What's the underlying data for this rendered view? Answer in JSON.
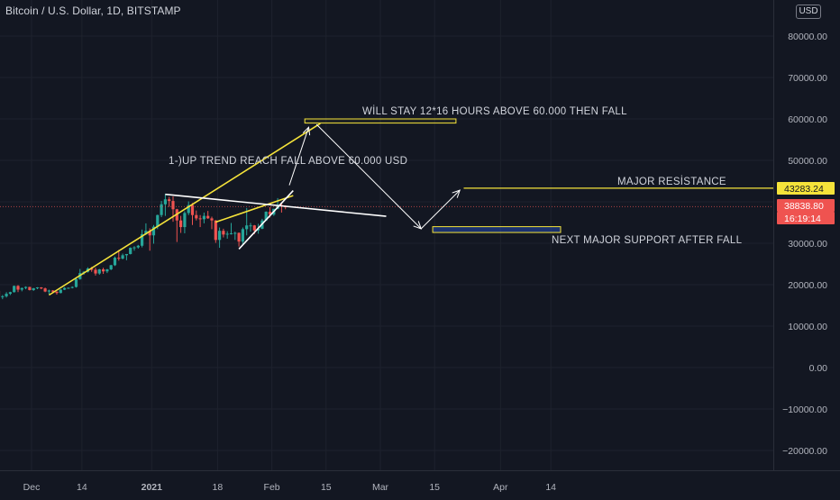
{
  "header": {
    "symbol_title": "Bitcoin / U.S. Dollar, 1D, BITSTAMP",
    "currency_button": "USD"
  },
  "colors": {
    "background": "#131722",
    "grid": "#1e222d",
    "axis_text": "#b2b5be",
    "candle_up": "#26a69a",
    "candle_down": "#ef5350",
    "trendline_yellow": "#f5e33a",
    "drawing_white": "#ffffff",
    "annotation_text": "#d1d4dc",
    "price_tag_yellow": "#f5e33a",
    "price_tag_red": "#ef5350"
  },
  "price_axis": {
    "ticks": [
      "80000.00",
      "70000.00",
      "60000.00",
      "50000.00",
      "40000.00",
      "30000.00",
      "20000.00",
      "10000.00",
      "0.00",
      "−10000.00",
      "−20000.00"
    ],
    "tags": [
      {
        "text": "43283.24",
        "style": "yellow"
      },
      {
        "text": "38838.80",
        "style": "red"
      },
      {
        "text": "16:19:14",
        "style": "red"
      }
    ]
  },
  "time_axis": {
    "ticks": [
      "Dec",
      "14",
      "2021",
      "18",
      "Feb",
      "15",
      "Mar",
      "15",
      "Apr",
      "14"
    ]
  },
  "annotations": {
    "stay_above": "WİLL STAY 12*16 HOURS ABOVE 60.000 THEN FALL",
    "uptrend": "1-)UP TREND REACH FALL ABOVE 60.000 USD",
    "major_resistance": "MAJOR RESİSTANCE",
    "next_support": "NEXT MAJOR SUPPORT AFTER FALL"
  },
  "chart_data": {
    "type": "candlestick",
    "title": "Bitcoin / U.S. Dollar, 1D, BITSTAMP",
    "ylim": [
      -25000,
      85000
    ],
    "candles": [
      {
        "date": "2020-11-26",
        "open": 18500,
        "high": 19000,
        "low": 16400,
        "close": 17100
      },
      {
        "date": "2020-11-27",
        "open": 17100,
        "high": 17500,
        "low": 16500,
        "close": 17200
      },
      {
        "date": "2020-11-28",
        "open": 17200,
        "high": 18200,
        "low": 16900,
        "close": 17800
      },
      {
        "date": "2020-11-29",
        "open": 17800,
        "high": 18300,
        "low": 17500,
        "close": 18200
      },
      {
        "date": "2020-11-30",
        "open": 18200,
        "high": 19800,
        "low": 18100,
        "close": 19700
      },
      {
        "date": "2020-12-01",
        "open": 19700,
        "high": 19900,
        "low": 18200,
        "close": 18800
      },
      {
        "date": "2020-12-02",
        "open": 18800,
        "high": 19300,
        "low": 18400,
        "close": 19200
      },
      {
        "date": "2020-12-03",
        "open": 19200,
        "high": 19600,
        "low": 18900,
        "close": 19450
      },
      {
        "date": "2020-12-04",
        "open": 19450,
        "high": 19500,
        "low": 18600,
        "close": 18700
      },
      {
        "date": "2020-12-05",
        "open": 18700,
        "high": 19200,
        "low": 18500,
        "close": 19150
      },
      {
        "date": "2020-12-06",
        "open": 19150,
        "high": 19400,
        "low": 18900,
        "close": 19350
      },
      {
        "date": "2020-12-07",
        "open": 19350,
        "high": 19400,
        "low": 18900,
        "close": 19100
      },
      {
        "date": "2020-12-08",
        "open": 19100,
        "high": 19300,
        "low": 18200,
        "close": 18350
      },
      {
        "date": "2020-12-09",
        "open": 18350,
        "high": 18800,
        "low": 17700,
        "close": 18600
      },
      {
        "date": "2020-12-10",
        "open": 18600,
        "high": 18700,
        "low": 17900,
        "close": 18300
      },
      {
        "date": "2020-12-11",
        "open": 18300,
        "high": 18400,
        "low": 17600,
        "close": 18000
      },
      {
        "date": "2020-12-12",
        "open": 18000,
        "high": 18900,
        "low": 17900,
        "close": 18800
      },
      {
        "date": "2020-12-13",
        "open": 18800,
        "high": 19400,
        "low": 18700,
        "close": 19200
      },
      {
        "date": "2020-12-14",
        "open": 19200,
        "high": 19300,
        "low": 19000,
        "close": 19250
      },
      {
        "date": "2020-12-15",
        "open": 19250,
        "high": 19600,
        "low": 19100,
        "close": 19450
      },
      {
        "date": "2020-12-16",
        "open": 19450,
        "high": 21500,
        "low": 19300,
        "close": 21350
      },
      {
        "date": "2020-12-17",
        "open": 21350,
        "high": 23800,
        "low": 21200,
        "close": 22800
      },
      {
        "date": "2020-12-18",
        "open": 22800,
        "high": 23300,
        "low": 22400,
        "close": 23100
      },
      {
        "date": "2020-12-19",
        "open": 23100,
        "high": 24200,
        "low": 22900,
        "close": 23900
      },
      {
        "date": "2020-12-20",
        "open": 23900,
        "high": 24300,
        "low": 23100,
        "close": 23600
      },
      {
        "date": "2020-12-21",
        "open": 23600,
        "high": 24100,
        "low": 22200,
        "close": 22700
      },
      {
        "date": "2020-12-22",
        "open": 22700,
        "high": 23800,
        "low": 22400,
        "close": 23700
      },
      {
        "date": "2020-12-23",
        "open": 23700,
        "high": 24100,
        "low": 22600,
        "close": 23200
      },
      {
        "date": "2020-12-24",
        "open": 23200,
        "high": 23800,
        "low": 22800,
        "close": 23700
      },
      {
        "date": "2020-12-25",
        "open": 23700,
        "high": 24800,
        "low": 23500,
        "close": 24700
      },
      {
        "date": "2020-12-26",
        "open": 24700,
        "high": 26800,
        "low": 24500,
        "close": 26500
      },
      {
        "date": "2020-12-27",
        "open": 26500,
        "high": 28400,
        "low": 25800,
        "close": 26300
      },
      {
        "date": "2020-12-28",
        "open": 26300,
        "high": 27500,
        "low": 26100,
        "close": 27100
      },
      {
        "date": "2020-12-29",
        "open": 27100,
        "high": 27400,
        "low": 25900,
        "close": 27400
      },
      {
        "date": "2020-12-30",
        "open": 27400,
        "high": 29000,
        "low": 27300,
        "close": 28900
      },
      {
        "date": "2020-12-31",
        "open": 28900,
        "high": 29300,
        "low": 28200,
        "close": 29000
      },
      {
        "date": "2021-01-01",
        "open": 29000,
        "high": 29600,
        "low": 28700,
        "close": 29400
      },
      {
        "date": "2021-01-02",
        "open": 29400,
        "high": 33300,
        "low": 29000,
        "close": 32200
      },
      {
        "date": "2021-01-03",
        "open": 32200,
        "high": 34800,
        "low": 32000,
        "close": 33000
      },
      {
        "date": "2021-01-04",
        "open": 33000,
        "high": 33600,
        "low": 28200,
        "close": 31900
      },
      {
        "date": "2021-01-05",
        "open": 31900,
        "high": 34400,
        "low": 29900,
        "close": 34000
      },
      {
        "date": "2021-01-06",
        "open": 34000,
        "high": 36900,
        "low": 33400,
        "close": 36800
      },
      {
        "date": "2021-01-07",
        "open": 36800,
        "high": 40200,
        "low": 36300,
        "close": 39400
      },
      {
        "date": "2021-01-08",
        "open": 39400,
        "high": 41900,
        "low": 36600,
        "close": 40600
      },
      {
        "date": "2021-01-09",
        "open": 40600,
        "high": 41200,
        "low": 38800,
        "close": 40200
      },
      {
        "date": "2021-01-10",
        "open": 40200,
        "high": 41300,
        "low": 35200,
        "close": 38200
      },
      {
        "date": "2021-01-11",
        "open": 38200,
        "high": 38300,
        "low": 30300,
        "close": 35500
      },
      {
        "date": "2021-01-12",
        "open": 35500,
        "high": 36600,
        "low": 32500,
        "close": 33900
      },
      {
        "date": "2021-01-13",
        "open": 33900,
        "high": 37700,
        "low": 32400,
        "close": 37300
      },
      {
        "date": "2021-01-14",
        "open": 37300,
        "high": 40100,
        "low": 36800,
        "close": 39200
      },
      {
        "date": "2021-01-15",
        "open": 39200,
        "high": 39700,
        "low": 34400,
        "close": 36800
      },
      {
        "date": "2021-01-16",
        "open": 36800,
        "high": 37900,
        "low": 35500,
        "close": 36000
      },
      {
        "date": "2021-01-17",
        "open": 36000,
        "high": 36800,
        "low": 33900,
        "close": 35800
      },
      {
        "date": "2021-01-18",
        "open": 35800,
        "high": 37400,
        "low": 34800,
        "close": 36600
      },
      {
        "date": "2021-01-19",
        "open": 36600,
        "high": 37800,
        "low": 35900,
        "close": 36000
      },
      {
        "date": "2021-01-20",
        "open": 36000,
        "high": 36400,
        "low": 33400,
        "close": 35500
      },
      {
        "date": "2021-01-21",
        "open": 35500,
        "high": 35600,
        "low": 30100,
        "close": 30800
      },
      {
        "date": "2021-01-22",
        "open": 30800,
        "high": 33800,
        "low": 28900,
        "close": 33000
      },
      {
        "date": "2021-01-23",
        "open": 33000,
        "high": 33500,
        "low": 31400,
        "close": 32100
      },
      {
        "date": "2021-01-24",
        "open": 32100,
        "high": 32900,
        "low": 31100,
        "close": 32300
      },
      {
        "date": "2021-01-25",
        "open": 32300,
        "high": 34900,
        "low": 32100,
        "close": 32400
      },
      {
        "date": "2021-01-26",
        "open": 32400,
        "high": 32800,
        "low": 30800,
        "close": 32500
      },
      {
        "date": "2021-01-27",
        "open": 32500,
        "high": 32600,
        "low": 29200,
        "close": 30400
      },
      {
        "date": "2021-01-28",
        "open": 30400,
        "high": 33800,
        "low": 29800,
        "close": 33400
      },
      {
        "date": "2021-01-29",
        "open": 33400,
        "high": 38500,
        "low": 31900,
        "close": 34300
      },
      {
        "date": "2021-01-30",
        "open": 34300,
        "high": 34900,
        "low": 32800,
        "close": 34300
      },
      {
        "date": "2021-01-31",
        "open": 34300,
        "high": 34400,
        "low": 32200,
        "close": 33100
      },
      {
        "date": "2021-02-01",
        "open": 33100,
        "high": 34700,
        "low": 32300,
        "close": 33500
      },
      {
        "date": "2021-02-02",
        "open": 33500,
        "high": 35900,
        "low": 33400,
        "close": 35500
      },
      {
        "date": "2021-02-03",
        "open": 35500,
        "high": 37700,
        "low": 35400,
        "close": 37600
      },
      {
        "date": "2021-02-04",
        "open": 37600,
        "high": 38700,
        "low": 36200,
        "close": 36900
      },
      {
        "date": "2021-02-05",
        "open": 36900,
        "high": 38300,
        "low": 36600,
        "close": 38300
      },
      {
        "date": "2021-02-06",
        "open": 38300,
        "high": 40900,
        "low": 38200,
        "close": 39200
      },
      {
        "date": "2021-02-07",
        "open": 39200,
        "high": 39600,
        "low": 37400,
        "close": 38900
      },
      {
        "date": "2021-02-08",
        "open": 38900,
        "high": 39100,
        "low": 38200,
        "close": 38839
      }
    ],
    "trendlines": [
      {
        "name": "uptrend",
        "color": "yellow",
        "from": [
          "2020-12-09",
          17500
        ],
        "to": [
          "2021-02-17",
          58900
        ]
      },
      {
        "name": "wedge-upper",
        "color": "yellow",
        "from": [
          "2021-01-21",
          35100
        ],
        "to": [
          "2021-02-10",
          41500
        ]
      },
      {
        "name": "wedge-lower",
        "color": "white",
        "from": [
          "2021-01-27",
          28600
        ],
        "to": [
          "2021-02-10",
          42700
        ]
      },
      {
        "name": "descending-resistance",
        "color": "white",
        "from": [
          "2021-01-08",
          41800
        ],
        "to": [
          "2021-03-06",
          36500
        ]
      }
    ],
    "zones": [
      {
        "name": "60k-target",
        "from": "2021-02-13",
        "to": "2021-03-24",
        "low": 59000,
        "high": 60000
      },
      {
        "name": "major-support",
        "from": "2021-03-18",
        "to": "2021-04-20",
        "low": 32600,
        "high": 34000
      }
    ],
    "levels": [
      {
        "name": "major-resistance",
        "value": 43283.24,
        "from": "2021-03-26"
      }
    ],
    "arrows": [
      {
        "name": "arrow-to-60k",
        "from": [
          "2021-02-09",
          44000
        ],
        "to": [
          "2021-02-14",
          58000
        ]
      },
      {
        "name": "arrow-fall-to-support",
        "from": [
          "2021-02-16",
          58700
        ],
        "to": [
          "2021-03-15",
          33500
        ]
      },
      {
        "name": "arrow-rebound",
        "from": [
          "2021-03-15",
          33500
        ],
        "to": [
          "2021-03-25",
          42800
        ]
      }
    ]
  }
}
